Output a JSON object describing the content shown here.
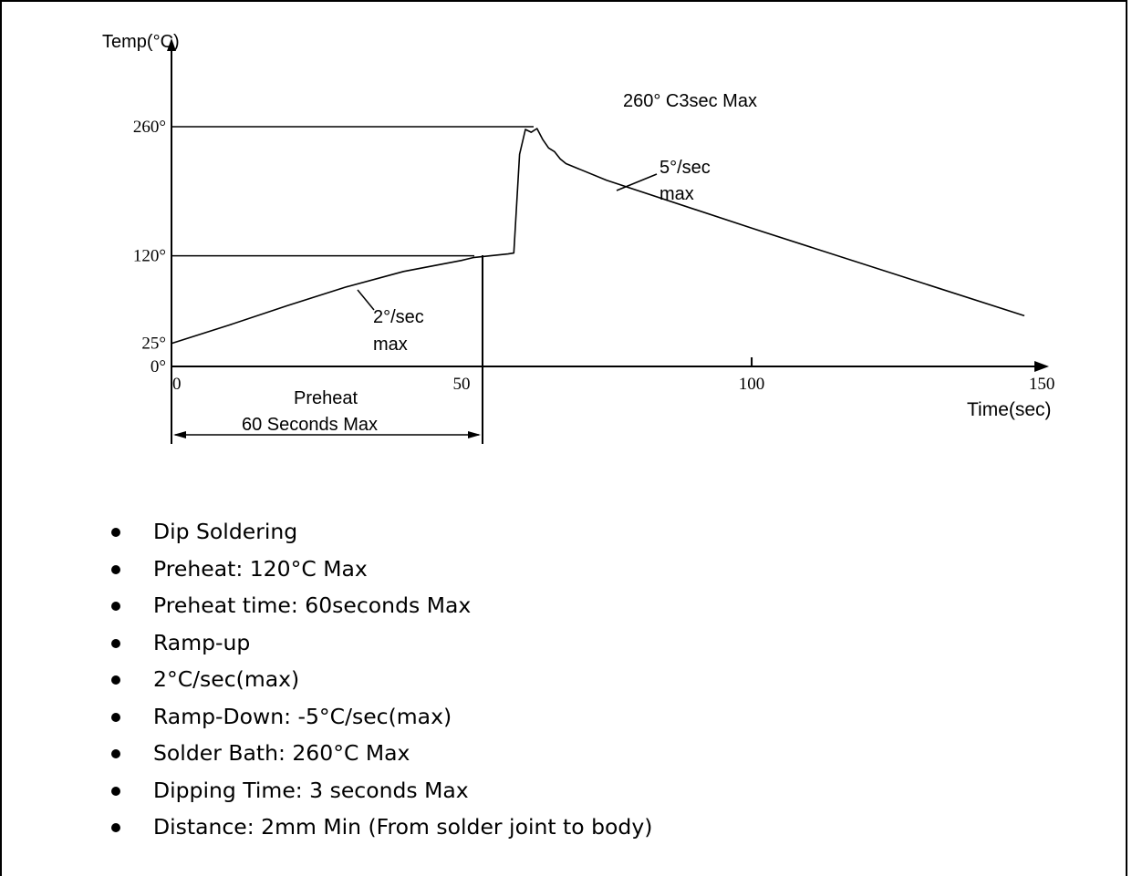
{
  "chart_data": {
    "type": "line",
    "title": "",
    "xlabel": "Time(sec)",
    "ylabel": "Temp(°C)",
    "xlim": [
      0,
      150
    ],
    "ylim": [
      0,
      260
    ],
    "x_ticks": [
      "0",
      "50",
      "100",
      "150"
    ],
    "y_ticks": [
      "260°",
      "120°",
      "25°",
      "0°"
    ],
    "series": [
      {
        "x": [
          0,
          10,
          20,
          30,
          40,
          50,
          52,
          58,
          59,
          60,
          61,
          62,
          63,
          64,
          65,
          66,
          67,
          68,
          75,
          100,
          147
        ],
        "y": [
          25,
          45,
          66,
          86,
          103,
          115,
          118,
          122,
          123,
          230,
          257,
          254,
          258,
          246,
          237,
          233,
          225,
          220,
          202,
          150,
          55
        ]
      }
    ],
    "reference_lines_y": [
      260,
      120
    ],
    "annotations": {
      "peak": "260° C3sec Max",
      "ramp_down": [
        "5°/sec",
        "max"
      ],
      "ramp_up": [
        "2°/sec",
        "max"
      ],
      "preheat": [
        "Preheat",
        "60 Seconds Max"
      ]
    }
  },
  "notes": [
    "Dip Soldering",
    "Preheat: 120°C Max",
    "Preheat time: 60seconds Max",
    "Ramp-up",
    "2°C/sec(max)",
    "Ramp-Down: -5°C/sec(max)",
    "Solder Bath: 260°C Max",
    "Dipping Time: 3 seconds Max",
    "Distance: 2mm Min (From solder joint to body)"
  ]
}
